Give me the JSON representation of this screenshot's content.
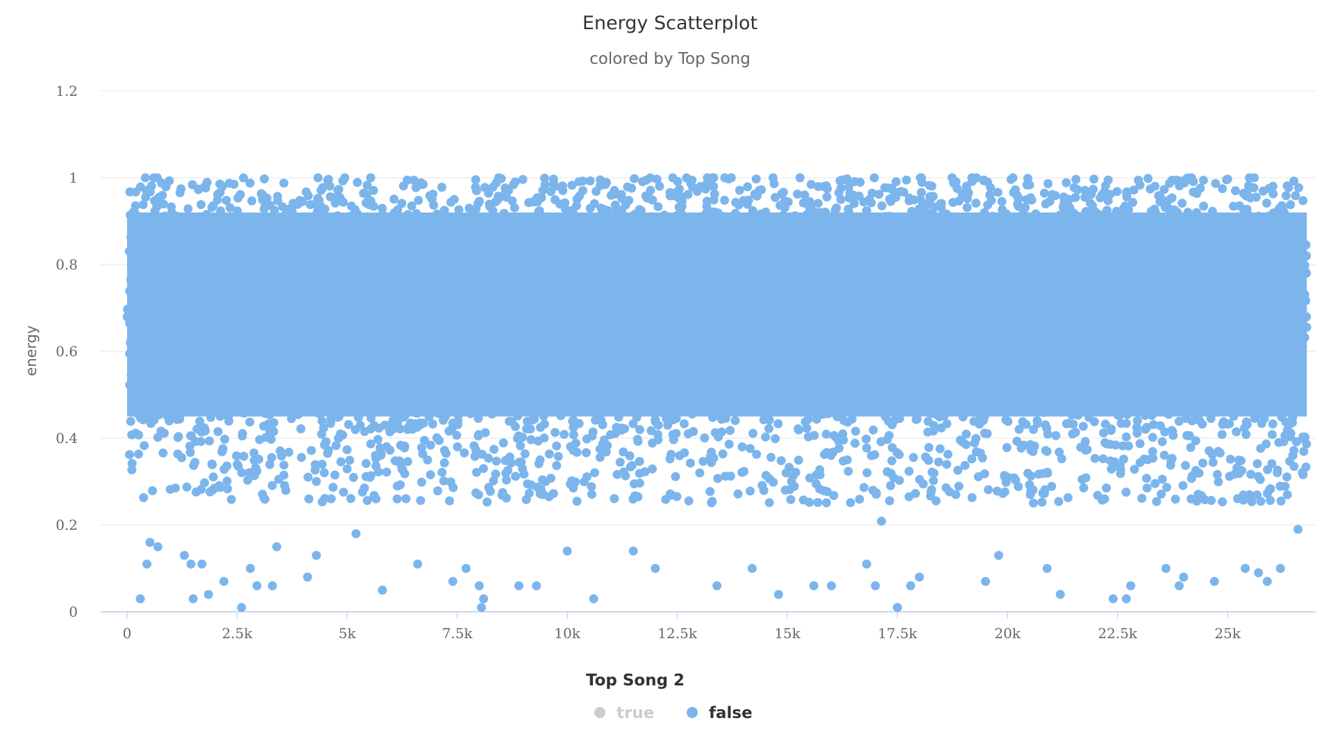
{
  "chart_data": {
    "type": "scatter",
    "title": "Energy Scatterplot",
    "subtitle": "colored by Top Song",
    "xlabel": "",
    "ylabel": "energy",
    "xlim": [
      -600,
      27000
    ],
    "ylim": [
      0,
      1.2
    ],
    "x_ticks": [
      0,
      2500,
      5000,
      7500,
      10000,
      12500,
      15000,
      17500,
      20000,
      22500,
      25000
    ],
    "x_tick_labels": [
      "0",
      "2.5k",
      "5k",
      "7.5k",
      "10k",
      "12.5k",
      "15k",
      "17.5k",
      "20k",
      "22.5k",
      "25k"
    ],
    "y_ticks": [
      0,
      0.2,
      0.4,
      0.6,
      0.8,
      1.0,
      1.2
    ],
    "y_tick_labels": [
      "0",
      "0.2",
      "0.4",
      "0.6",
      "0.8",
      "1",
      "1.2"
    ],
    "grid": "horizontal",
    "legend_placement": "bottom-center",
    "legend_title": "Top Song 2",
    "x_range_observed": [
      0,
      26800
    ],
    "series": [
      {
        "name": "true",
        "color": "#cccccc",
        "visible": false,
        "points": []
      },
      {
        "name": "false",
        "color": "#7cb5ec",
        "visible": true,
        "band_y": [
          0.45,
          0.92
        ],
        "outlier_points": [
          [
            300,
            0.03
          ],
          [
            450,
            0.11
          ],
          [
            520,
            0.16
          ],
          [
            700,
            0.15
          ],
          [
            1300,
            0.13
          ],
          [
            1450,
            0.11
          ],
          [
            1500,
            0.03
          ],
          [
            1700,
            0.11
          ],
          [
            1850,
            0.04
          ],
          [
            2200,
            0.07
          ],
          [
            2600,
            0.01
          ],
          [
            2800,
            0.1
          ],
          [
            2950,
            0.06
          ],
          [
            3300,
            0.06
          ],
          [
            3400,
            0.15
          ],
          [
            4100,
            0.08
          ],
          [
            4300,
            0.13
          ],
          [
            5200,
            0.18
          ],
          [
            5800,
            0.05
          ],
          [
            6600,
            0.11
          ],
          [
            7400,
            0.07
          ],
          [
            7700,
            0.1
          ],
          [
            8000,
            0.06
          ],
          [
            8100,
            0.03
          ],
          [
            8050,
            0.01
          ],
          [
            8900,
            0.06
          ],
          [
            9300,
            0.06
          ],
          [
            10000,
            0.14
          ],
          [
            10600,
            0.03
          ],
          [
            11500,
            0.14
          ],
          [
            12000,
            0.1
          ],
          [
            13400,
            0.06
          ],
          [
            14200,
            0.1
          ],
          [
            14800,
            0.04
          ],
          [
            15600,
            0.06
          ],
          [
            16000,
            0.06
          ],
          [
            16800,
            0.11
          ],
          [
            17000,
            0.06
          ],
          [
            17500,
            0.01
          ],
          [
            17800,
            0.06
          ],
          [
            18000,
            0.08
          ],
          [
            19500,
            0.07
          ],
          [
            19800,
            0.13
          ],
          [
            20900,
            0.1
          ],
          [
            21200,
            0.04
          ],
          [
            22400,
            0.03
          ],
          [
            22700,
            0.03
          ],
          [
            22800,
            0.06
          ],
          [
            23600,
            0.1
          ],
          [
            23900,
            0.06
          ],
          [
            24000,
            0.08
          ],
          [
            24700,
            0.07
          ],
          [
            25400,
            0.1
          ],
          [
            25700,
            0.09
          ],
          [
            25900,
            0.07
          ],
          [
            26200,
            0.1
          ],
          [
            26600,
            0.19
          ]
        ]
      }
    ]
  },
  "colors": {
    "series_false": "#7cb5ec",
    "series_true_hidden": "#cccccc",
    "gridline": "#e6e6e6",
    "axis_line": "#ccd6eb"
  }
}
